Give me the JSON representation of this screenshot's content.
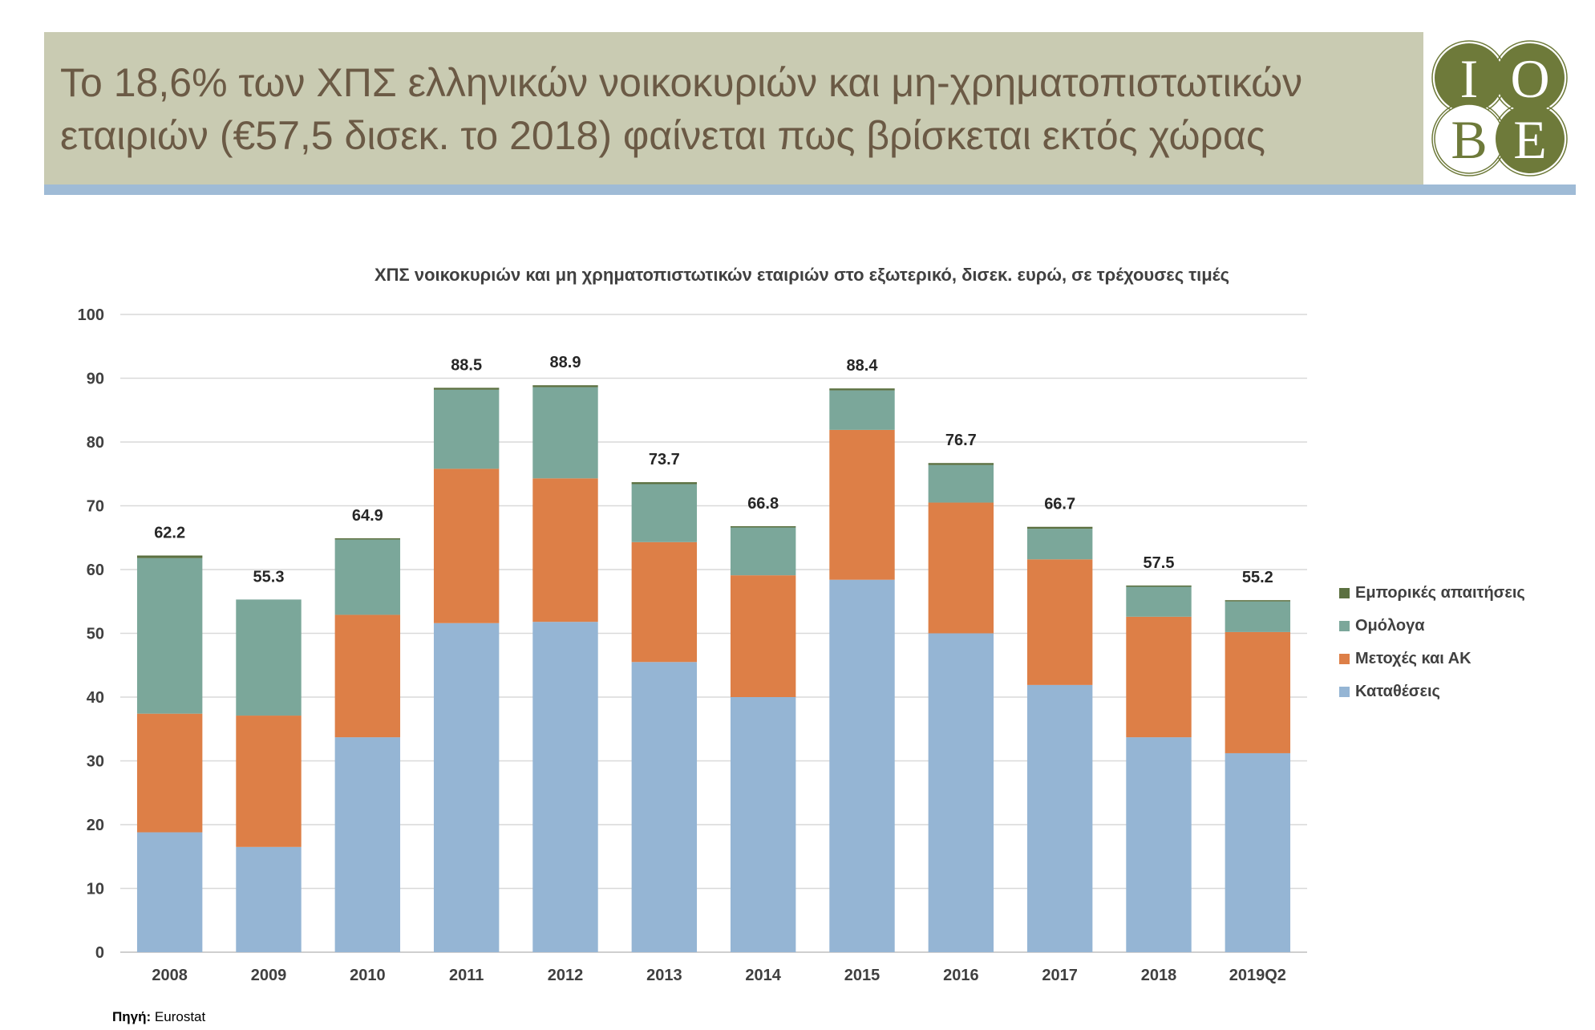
{
  "header": {
    "title": "Το 18,6% των ΧΠΣ ελληνικών νοικοκυριών και μη-χρηματοπιστωτικών εταιριών (€57,5 δισεκ. το 2018) φαίνεται πως βρίσκεται εκτός χώρας",
    "logo_letters": [
      "I",
      "O",
      "B",
      "E"
    ],
    "band_color": "#c9cbb2",
    "title_color": "#6b5a45",
    "rule_color": "#9fbbd6",
    "logo_color": "#6e7a3a"
  },
  "chart_data": {
    "type": "bar",
    "stacked": true,
    "title": "ΧΠΣ νοικοκυριών και μη χρηματοπιστωτικών εταιριών στο εξωτερικό, δισεκ. ευρώ, σε τρέχουσες τιμές",
    "xlabel": "",
    "ylabel": "",
    "ylim": [
      0,
      100
    ],
    "yticks": [
      0,
      10,
      20,
      30,
      40,
      50,
      60,
      70,
      80,
      90,
      100
    ],
    "grid": true,
    "legend_position": "right",
    "categories": [
      "2008",
      "2009",
      "2010",
      "2011",
      "2012",
      "2013",
      "2014",
      "2015",
      "2016",
      "2017",
      "2018",
      "2019Q2"
    ],
    "series": [
      {
        "name": "Καταθέσεις",
        "color": "#95b5d4",
        "values": [
          18.8,
          16.5,
          33.7,
          51.6,
          51.8,
          45.5,
          40.0,
          58.4,
          50.0,
          41.9,
          33.7,
          31.2
        ]
      },
      {
        "name": "Μετοχές και ΑΚ",
        "color": "#dd7f47",
        "values": [
          18.6,
          20.6,
          19.2,
          24.2,
          22.5,
          18.8,
          19.1,
          23.5,
          20.5,
          19.7,
          18.9,
          19.0
        ]
      },
      {
        "name": "Ομόλογα",
        "color": "#7ba79a",
        "values": [
          24.4,
          18.2,
          11.8,
          12.4,
          14.3,
          9.1,
          7.5,
          6.2,
          5.9,
          4.8,
          4.7,
          4.8
        ]
      },
      {
        "name": "Εμπορικές απαιτήσεις",
        "color": "#5b7040",
        "values": [
          0.4,
          0.0,
          0.2,
          0.3,
          0.3,
          0.3,
          0.2,
          0.3,
          0.3,
          0.3,
          0.2,
          0.2
        ]
      }
    ],
    "totals": [
      "62.2",
      "55.3",
      "64.9",
      "88.5",
      "88.9",
      "73.7",
      "66.8",
      "88.4",
      "76.7",
      "66.7",
      "57.5",
      "55.2"
    ],
    "totals_values": [
      62.2,
      55.3,
      64.9,
      88.5,
      88.9,
      73.7,
      66.8,
      88.4,
      76.7,
      66.7,
      57.5,
      55.2
    ],
    "legend_order": [
      "Εμπορικές απαιτήσεις",
      "Ομόλογα",
      "Μετοχές και ΑΚ",
      "Καταθέσεις"
    ]
  },
  "source": {
    "label": "Πηγή:",
    "text": "Eurostat"
  }
}
